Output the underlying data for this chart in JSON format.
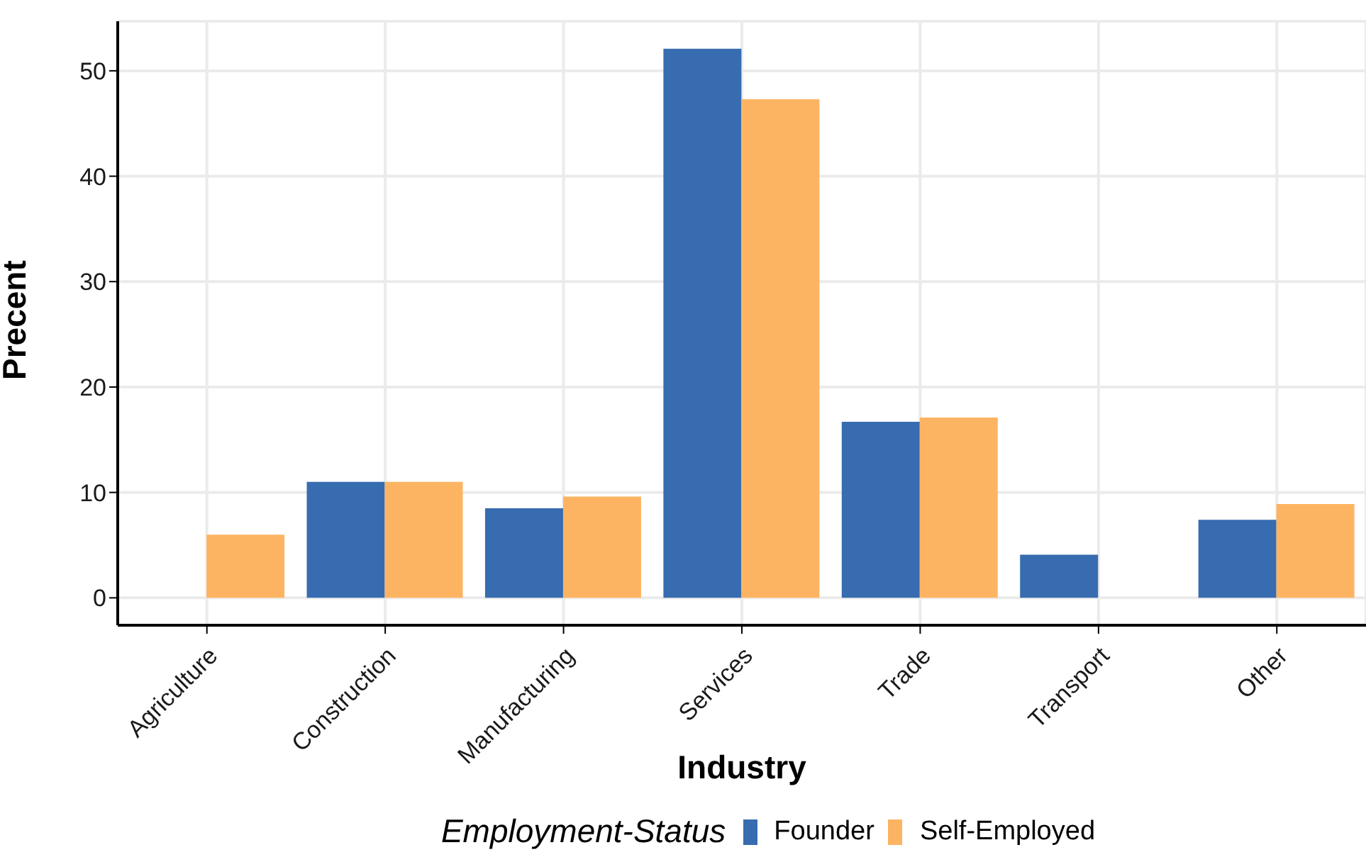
{
  "chart_data": {
    "type": "bar",
    "xlabel": "Industry",
    "ylabel": "Precent",
    "legend_title": "Employment-Status",
    "categories": [
      "Agriculture",
      "Construction",
      "Manufacturing",
      "Services",
      "Trade",
      "Transport",
      "Other"
    ],
    "series": [
      {
        "name": "Founder",
        "color": "#386cb0",
        "values": [
          null,
          11.0,
          8.5,
          52.1,
          16.7,
          4.1,
          7.4
        ]
      },
      {
        "name": "Self-Employed",
        "color": "#fdb462",
        "values": [
          6.0,
          11.0,
          9.6,
          47.3,
          17.1,
          null,
          8.9
        ]
      }
    ],
    "ylim": [
      -2.6,
      54.7
    ],
    "yticks": [
      0,
      10,
      20,
      30,
      40,
      50
    ],
    "grid": true,
    "legend": "bottom"
  }
}
